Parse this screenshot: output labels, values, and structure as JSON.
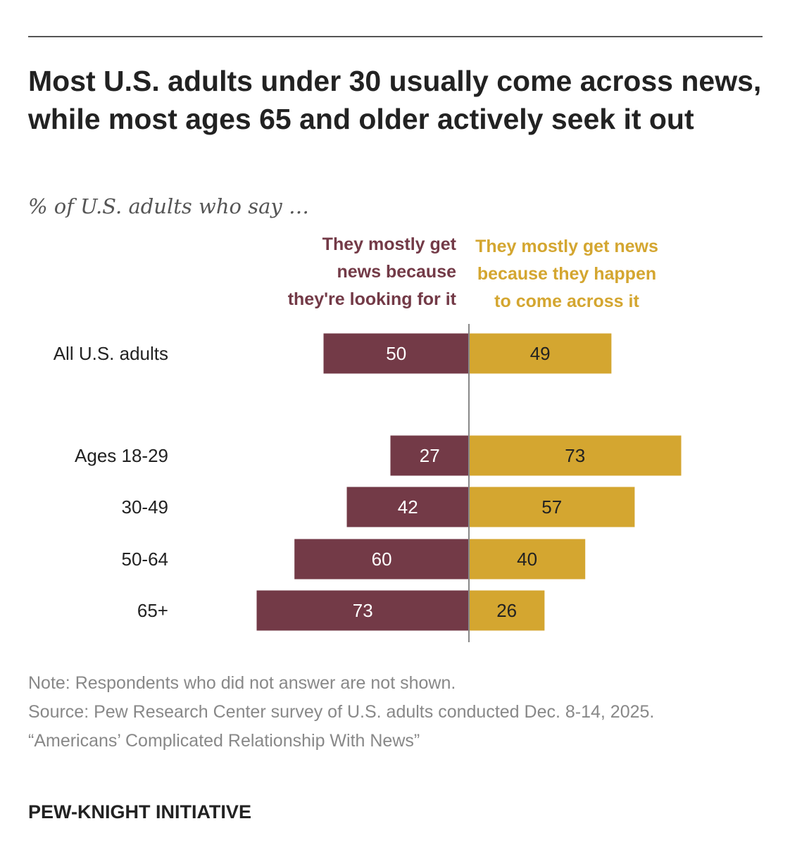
{
  "title": "Most U.S. adults under 30 usually come across news, while most ages 65 and older actively seek it out",
  "subtitle": "% of U.S. adults who say …",
  "colors": {
    "left_series": "#733a47",
    "right_series": "#d4a630",
    "axis": "#888888"
  },
  "chart_data": {
    "type": "bar",
    "orientation": "horizontal-diverging",
    "categories": [
      "All U.S. adults",
      "Ages 18-29",
      "30-49",
      "50-64",
      "65+"
    ],
    "series": [
      {
        "name": "They mostly get\nnews because\nthey're looking for it",
        "values": [
          50,
          27,
          42,
          60,
          73
        ]
      },
      {
        "name": "They mostly get news\nbecause they happen\nto come across it",
        "values": [
          49,
          73,
          57,
          40,
          26
        ]
      }
    ],
    "ylim": [
      0,
      100
    ]
  },
  "notes": {
    "note": "Note: Respondents who did not answer are not shown.",
    "source": "Source: Pew Research Center survey of U.S. adults conducted Dec. 8-14, 2025.",
    "report": "“Americans’ Complicated Relationship With News”"
  },
  "brand": "PEW-KNIGHT INITIATIVE"
}
